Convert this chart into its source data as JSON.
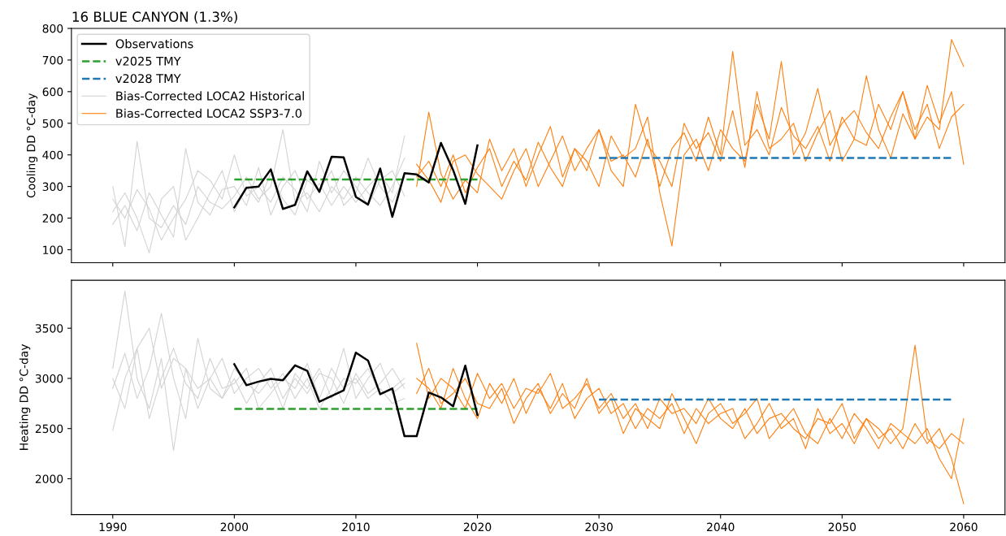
{
  "chart_data": [
    {
      "type": "line",
      "title": "16 BLUE CANYON (1.3%)",
      "ylabel": "Cooling DD °C-day",
      "xlim": [
        1986.6,
        2063.4
      ],
      "xticks": [
        1990,
        2000,
        2010,
        2020,
        2030,
        2040,
        2050,
        2060
      ],
      "ylim": [
        59,
        800
      ],
      "yticks": [
        100,
        200,
        300,
        400,
        500,
        600,
        700,
        800
      ],
      "tick_labels": "y",
      "legend": "top left",
      "grid": false,
      "series": [
        {
          "name": "Observations",
          "color": "#000000",
          "line_style": "solid",
          "x": [
            2000,
            2001,
            2002,
            2003,
            2004,
            2005,
            2006,
            2007,
            2008,
            2009,
            2010,
            2011,
            2012,
            2013,
            2014,
            2015,
            2016,
            2017,
            2018,
            2019,
            2020
          ],
          "values": [
            234,
            296,
            300,
            354,
            229,
            242,
            348,
            283,
            394,
            392,
            267,
            243,
            357,
            204,
            342,
            338,
            313,
            438,
            352,
            245,
            430
          ]
        },
        {
          "name": "v2025 TMY",
          "color": "#2ca02c",
          "line_style": "dashed",
          "x": [
            2000,
            2020
          ],
          "values": [
            322,
            322
          ]
        },
        {
          "name": "v2028 TMY",
          "color": "#1f77b4",
          "line_style": "dashed",
          "x": [
            2030,
            2059
          ],
          "values": [
            390,
            390
          ]
        },
        {
          "name": "Bias-Corrected LOCA2 Historical",
          "color": "#d3d3d3",
          "line_style": "solid",
          "x": [
            1990,
            1991,
            1992,
            1993,
            1994,
            1995,
            1996,
            1997,
            1998,
            1999,
            2000,
            2001,
            2002,
            2003,
            2004,
            2005,
            2006,
            2007,
            2008,
            2009,
            2010,
            2011,
            2012,
            2013,
            2014
          ],
          "values": [
            300,
            110,
            443,
            200,
            170,
            240,
            180,
            300,
            250,
            230,
            270,
            330,
            260,
            300,
            480,
            250,
            280,
            220,
            300,
            260,
            330,
            280,
            240,
            300,
            390
          ]
        },
        {
          "color": "#d3d3d3",
          "line_style": "solid",
          "x": [
            1990,
            1991,
            1992,
            1993,
            1994,
            1995,
            1996,
            1997,
            1998,
            1999,
            2000,
            2001,
            2002,
            2003,
            2004,
            2005,
            2006,
            2007,
            2008,
            2009,
            2010,
            2011,
            2012,
            2013,
            2014
          ],
          "values": [
            220,
            280,
            200,
            90,
            260,
            300,
            130,
            200,
            280,
            350,
            220,
            300,
            250,
            340,
            260,
            210,
            320,
            290,
            350,
            240,
            280,
            390,
            300,
            250,
            330
          ]
        },
        {
          "color": "#d3d3d3",
          "line_style": "solid",
          "x": [
            1990,
            1991,
            1992,
            1993,
            1994,
            1995,
            1996,
            1997,
            1998,
            1999,
            2000,
            2001,
            2002,
            2003,
            2004,
            2005,
            2006,
            2007,
            2008,
            2009,
            2010,
            2011,
            2012,
            2013,
            2014
          ],
          "values": [
            180,
            240,
            160,
            280,
            210,
            140,
            420,
            250,
            210,
            290,
            300,
            240,
            360,
            210,
            300,
            350,
            260,
            310,
            240,
            300,
            250,
            300,
            340,
            280,
            460
          ]
        },
        {
          "color": "#d3d3d3",
          "line_style": "solid",
          "x": [
            1990,
            1991,
            1992,
            1993,
            1994,
            1995,
            1996,
            1997,
            1998,
            1999,
            2000,
            2001,
            2002,
            2003,
            2004,
            2005,
            2006,
            2007,
            2008,
            2009,
            2010,
            2011,
            2012,
            2013,
            2014
          ],
          "values": [
            260,
            200,
            290,
            230,
            130,
            200,
            260,
            350,
            320,
            260,
            400,
            270,
            300,
            250,
            330,
            290,
            220,
            380,
            280,
            350,
            300,
            240,
            320,
            350,
            270
          ]
        },
        {
          "name": "Bias-Corrected LOCA2 SSP3-7.0",
          "color": "#ff7f0e",
          "line_style": "solid",
          "x": [
            2015,
            2016,
            2017,
            2018,
            2019,
            2020,
            2021,
            2022,
            2023,
            2024,
            2025,
            2026,
            2027,
            2028,
            2029,
            2030,
            2031,
            2032,
            2033,
            2034,
            2035,
            2036,
            2037,
            2038,
            2039,
            2040,
            2041,
            2042,
            2043,
            2044,
            2045,
            2046,
            2047,
            2048,
            2049,
            2050,
            2051,
            2052,
            2053,
            2054,
            2055,
            2056,
            2057,
            2058,
            2059,
            2060
          ],
          "values": [
            330,
            380,
            300,
            400,
            280,
            360,
            420,
            300,
            380,
            320,
            440,
            360,
            300,
            420,
            350,
            480,
            380,
            400,
            330,
            450,
            300,
            420,
            470,
            380,
            520,
            400,
            727,
            430,
            480,
            400,
            550,
            460,
            420,
            490,
            380,
            520,
            450,
            430,
            560,
            480,
            600,
            450,
            520,
            480,
            765,
            680
          ]
        },
        {
          "color": "#ff7f0e",
          "line_style": "solid",
          "x": [
            2015,
            2016,
            2017,
            2018,
            2019,
            2020,
            2021,
            2022,
            2023,
            2024,
            2025,
            2026,
            2027,
            2028,
            2029,
            2030,
            2031,
            2032,
            2033,
            2034,
            2035,
            2036,
            2037,
            2038,
            2039,
            2040,
            2041,
            2042,
            2043,
            2044,
            2045,
            2046,
            2047,
            2048,
            2049,
            2050,
            2051,
            2052,
            2053,
            2054,
            2055,
            2056,
            2057,
            2058,
            2059,
            2060
          ],
          "values": [
            300,
            535,
            340,
            260,
            320,
            280,
            450,
            350,
            420,
            300,
            400,
            490,
            330,
            420,
            380,
            300,
            460,
            390,
            420,
            520,
            280,
            112,
            400,
            450,
            350,
            480,
            420,
            380,
            560,
            450,
            695,
            400,
            470,
            610,
            430,
            500,
            540,
            470,
            420,
            520,
            600,
            480,
            560,
            420,
            520,
            560
          ]
        },
        {
          "color": "#ff7f0e",
          "line_style": "solid",
          "x": [
            2015,
            2016,
            2017,
            2018,
            2019,
            2020,
            2021,
            2022,
            2023,
            2024,
            2025,
            2026,
            2027,
            2028,
            2029,
            2030,
            2031,
            2032,
            2033,
            2034,
            2035,
            2036,
            2037,
            2038,
            2039,
            2040,
            2041,
            2042,
            2043,
            2044,
            2045,
            2046,
            2047,
            2048,
            2049,
            2050,
            2051,
            2052,
            2053,
            2054,
            2055,
            2056,
            2057,
            2058,
            2059,
            2060
          ],
          "values": [
            370,
            320,
            250,
            380,
            400,
            340,
            300,
            260,
            350,
            420,
            300,
            380,
            460,
            350,
            420,
            480,
            350,
            300,
            560,
            430,
            380,
            300,
            500,
            420,
            470,
            380,
            540,
            360,
            600,
            420,
            450,
            500,
            380,
            470,
            540,
            380,
            450,
            650,
            480,
            390,
            530,
            450,
            620,
            500,
            600,
            370
          ]
        }
      ]
    },
    {
      "type": "line",
      "ylabel": "Heating DD °C-day",
      "xlim": [
        1986.6,
        2063.4
      ],
      "xticks": [
        1990,
        2000,
        2010,
        2020,
        2030,
        2040,
        2050,
        2060
      ],
      "ylim": [
        1643,
        3978
      ],
      "yticks": [
        2000,
        2500,
        3000,
        3500
      ],
      "grid": false,
      "series": [
        {
          "color": "#000000",
          "line_style": "solid",
          "x": [
            2000,
            2001,
            2002,
            2003,
            2004,
            2005,
            2006,
            2007,
            2008,
            2009,
            2010,
            2011,
            2012,
            2013,
            2014,
            2015,
            2016,
            2017,
            2018,
            2019,
            2020
          ],
          "values": [
            3141,
            2932,
            2968,
            2995,
            2981,
            3130,
            3076,
            2768,
            2824,
            2881,
            3257,
            3178,
            2843,
            2900,
            2424,
            2424,
            2859,
            2811,
            2722,
            3127,
            2635
          ]
        },
        {
          "color": "#2ca02c",
          "line_style": "dashed",
          "x": [
            2000,
            2020
          ],
          "values": [
            2695,
            2695
          ]
        },
        {
          "color": "#1f77b4",
          "line_style": "dashed",
          "x": [
            2030,
            2059
          ],
          "values": [
            2790,
            2790
          ]
        },
        {
          "color": "#d3d3d3",
          "line_style": "solid",
          "x": [
            1990,
            1991,
            1992,
            1993,
            1994,
            1995,
            1996,
            1997,
            1998,
            1999,
            2000,
            2001,
            2002,
            2003,
            2004,
            2005,
            2006,
            2007,
            2008,
            2009,
            2010,
            2011,
            2012,
            2013,
            2014
          ],
          "values": [
            3100,
            3870,
            3000,
            2700,
            3200,
            2280,
            3100,
            2900,
            3000,
            2800,
            3100,
            2950,
            2850,
            3000,
            2700,
            3050,
            2900,
            3100,
            2800,
            3000,
            2950,
            3100,
            2850,
            2900,
            3000
          ]
        },
        {
          "color": "#d3d3d3",
          "line_style": "solid",
          "x": [
            1990,
            1991,
            1992,
            1993,
            1994,
            1995,
            1996,
            1997,
            1998,
            1999,
            2000,
            2001,
            2002,
            2003,
            2004,
            2005,
            2006,
            2007,
            2008,
            2009,
            2010,
            2011,
            2012,
            2013,
            2014
          ],
          "values": [
            2480,
            3000,
            3300,
            3500,
            2900,
            3200,
            3100,
            2700,
            3000,
            3200,
            2850,
            3000,
            3100,
            2900,
            3050,
            2800,
            3000,
            2700,
            2900,
            3300,
            2800,
            3000,
            3150,
            2850,
            2950
          ]
        },
        {
          "color": "#d3d3d3",
          "line_style": "solid",
          "x": [
            1990,
            1991,
            1992,
            1993,
            1994,
            1995,
            1996,
            1997,
            1998,
            1999,
            2000,
            2001,
            2002,
            2003,
            2004,
            2005,
            2006,
            2007,
            2008,
            2009,
            2010,
            2011,
            2012,
            2013,
            2014
          ],
          "values": [
            2900,
            3250,
            2800,
            3100,
            3650,
            3000,
            2600,
            3400,
            2900,
            2800,
            3000,
            2750,
            2950,
            3100,
            2800,
            3000,
            2850,
            3050,
            3000,
            2750,
            3050,
            2850,
            2950,
            3100,
            2900
          ]
        },
        {
          "color": "#d3d3d3",
          "line_style": "solid",
          "x": [
            1990,
            1991,
            1992,
            1993,
            1994,
            1995,
            1996,
            1997,
            1998,
            1999,
            2000,
            2001,
            2002,
            2003,
            2004,
            2005,
            2006,
            2007,
            2008,
            2009,
            2010,
            2011,
            2012,
            2013,
            2014
          ],
          "values": [
            3000,
            2700,
            3300,
            2600,
            3000,
            3300,
            2950,
            2800,
            3200,
            2900,
            2950,
            3100,
            2700,
            2850,
            3000,
            2900,
            3150,
            2800,
            3100,
            2900,
            3000,
            2800,
            2900,
            2750,
            2800
          ]
        },
        {
          "color": "#ff7f0e",
          "line_style": "solid",
          "x": [
            2015,
            2016,
            2017,
            2018,
            2019,
            2020,
            2021,
            2022,
            2023,
            2024,
            2025,
            2026,
            2027,
            2028,
            2029,
            2030,
            2031,
            2032,
            2033,
            2034,
            2035,
            2036,
            2037,
            2038,
            2039,
            2040,
            2041,
            2042,
            2043,
            2044,
            2045,
            2046,
            2047,
            2048,
            2049,
            2050,
            2051,
            2052,
            2053,
            2054,
            2055,
            2056,
            2057,
            2058,
            2059,
            2060
          ],
          "values": [
            3350,
            2800,
            3000,
            2900,
            2700,
            3050,
            2800,
            2950,
            2700,
            2900,
            2850,
            3050,
            2700,
            2800,
            2950,
            2700,
            2850,
            2600,
            2750,
            2500,
            2800,
            2650,
            2700,
            2550,
            2800,
            2600,
            2500,
            2700,
            2450,
            2600,
            2650,
            2500,
            2400,
            2600,
            2550,
            2750,
            2400,
            2600,
            2500,
            2350,
            2500,
            3330,
            2400,
            2300,
            2450,
            2350
          ]
        },
        {
          "color": "#ff7f0e",
          "line_style": "solid",
          "x": [
            2015,
            2016,
            2017,
            2018,
            2019,
            2020,
            2021,
            2022,
            2023,
            2024,
            2025,
            2026,
            2027,
            2028,
            2029,
            2030,
            2031,
            2032,
            2033,
            2034,
            2035,
            2036,
            2037,
            2038,
            2039,
            2040,
            2041,
            2042,
            2043,
            2044,
            2045,
            2046,
            2047,
            2048,
            2049,
            2050,
            2051,
            2052,
            2053,
            2054,
            2055,
            2056,
            2057,
            2058,
            2059,
            2060
          ],
          "values": [
            3000,
            2900,
            2700,
            3100,
            2800,
            2600,
            2950,
            2750,
            3000,
            2650,
            2900,
            2700,
            2950,
            2600,
            2800,
            2900,
            2650,
            2750,
            2500,
            2700,
            2600,
            2750,
            2450,
            2700,
            2550,
            2650,
            2700,
            2400,
            2550,
            2750,
            2500,
            2600,
            2300,
            2700,
            2450,
            2550,
            2350,
            2600,
            2400,
            2500,
            2300,
            2550,
            2350,
            2500,
            2200,
            1750
          ]
        },
        {
          "color": "#ff7f0e",
          "line_style": "solid",
          "x": [
            2015,
            2016,
            2017,
            2018,
            2019,
            2020,
            2021,
            2022,
            2023,
            2024,
            2025,
            2026,
            2027,
            2028,
            2029,
            2030,
            2031,
            2032,
            2033,
            2034,
            2035,
            2036,
            2037,
            2038,
            2039,
            2040,
            2041,
            2042,
            2043,
            2044,
            2045,
            2046,
            2047,
            2048,
            2049,
            2050,
            2051,
            2052,
            2053,
            2054,
            2055,
            2056,
            2057,
            2058,
            2059,
            2060
          ],
          "values": [
            2850,
            3100,
            2750,
            2850,
            3000,
            2750,
            2700,
            2900,
            2550,
            2800,
            2950,
            2650,
            2850,
            2700,
            3000,
            2650,
            2800,
            2450,
            2700,
            2600,
            2500,
            2850,
            2600,
            2350,
            2650,
            2750,
            2550,
            2650,
            2800,
            2400,
            2550,
            2700,
            2450,
            2350,
            2600,
            2400,
            2650,
            2500,
            2300,
            2550,
            2450,
            2350,
            2500,
            2200,
            2000,
            2600
          ]
        }
      ]
    }
  ]
}
